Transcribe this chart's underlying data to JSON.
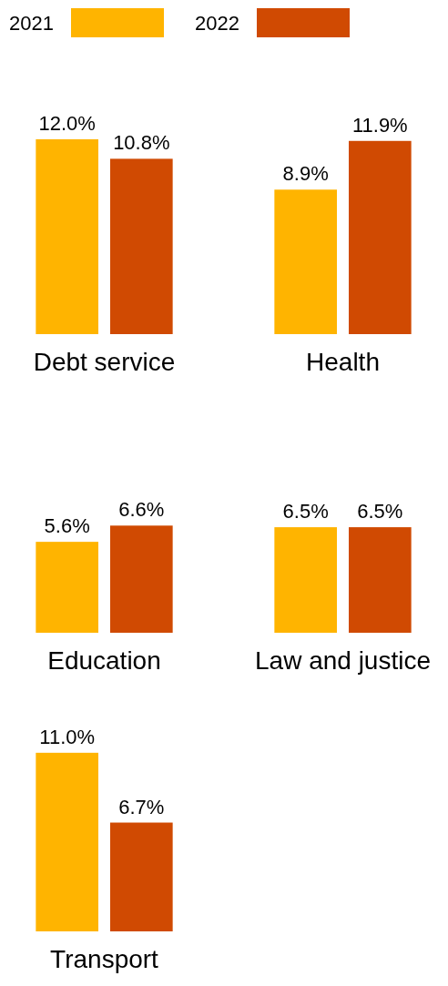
{
  "chart_data": [
    {
      "type": "bar",
      "xlabel": "Debt service",
      "categories": [
        null
      ],
      "legend": "top",
      "series": [
        {
          "name": "2021",
          "color": "#ffb400",
          "values": [
            12.0
          ],
          "value_labels": [
            "12.0%"
          ]
        },
        {
          "name": "2022",
          "color": "#d04a02",
          "values": [
            10.8
          ],
          "value_labels": [
            "10.8%"
          ]
        }
      ]
    },
    {
      "type": "bar",
      "xlabel": "Health",
      "categories": [
        null
      ],
      "series": [
        {
          "color": "#ffb400",
          "values": [
            8.9
          ],
          "value_labels": [
            "8.9%"
          ]
        },
        {
          "color": "#d04a02",
          "values": [
            11.9
          ],
          "value_labels": [
            "11.9%"
          ]
        }
      ]
    },
    {
      "type": "bar",
      "xlabel": "Education",
      "categories": [
        null
      ],
      "series": [
        {
          "color": "#ffb400",
          "values": [
            5.6
          ],
          "value_labels": [
            "5.6%"
          ]
        },
        {
          "color": "#d04a02",
          "values": [
            6.6
          ],
          "value_labels": [
            "6.6%"
          ]
        }
      ]
    },
    {
      "type": "bar",
      "xlabel": "Law and justice",
      "categories": [
        null
      ],
      "series": [
        {
          "color": "#ffb400",
          "values": [
            6.5
          ],
          "value_labels": [
            "6.5%"
          ]
        },
        {
          "color": "#d04a02",
          "values": [
            6.5
          ],
          "value_labels": [
            "6.5%"
          ]
        }
      ]
    },
    {
      "type": "bar",
      "xlabel": "Transport",
      "categories": [
        null
      ],
      "series": [
        {
          "color": "#ffb400",
          "values": [
            11.0
          ],
          "value_labels": [
            "11.0%"
          ]
        },
        {
          "color": "#d04a02",
          "values": [
            6.7
          ],
          "value_labels": [
            "6.7%"
          ]
        }
      ]
    }
  ]
}
